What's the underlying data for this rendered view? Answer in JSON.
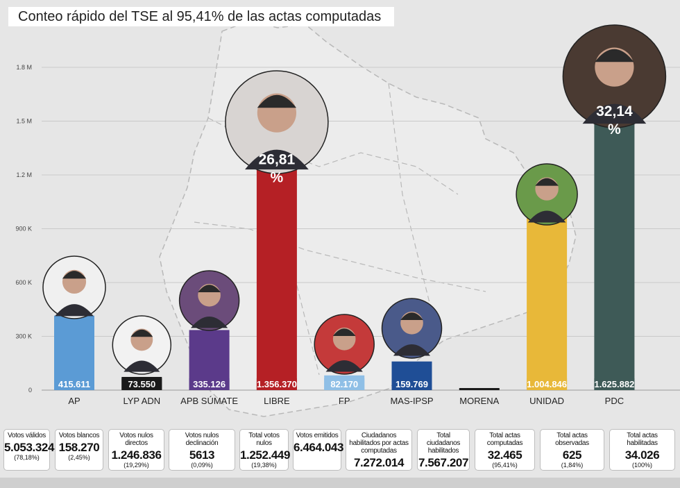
{
  "title": "Conteo rápido del TSE al 95,41% de las actas computadas",
  "chart_data": {
    "type": "bar",
    "title": "Conteo rápido del TSE al 95,41% de las actas computadas",
    "categories": [
      "AP",
      "LYP ADN",
      "APB SÚMATE",
      "LIBRE",
      "FP",
      "MAS-IPSP",
      "MORENA",
      "UNIDAD",
      "PDC"
    ],
    "values": [
      415611,
      73550,
      335126,
      1356370,
      82170,
      159769,
      0,
      1004846,
      1625882
    ],
    "value_labels": [
      "415.611",
      "73.550",
      "335.126",
      "1.356.370",
      "82.170",
      "159.769",
      "",
      "1.004.846",
      "1.625.882"
    ],
    "percent_labels": {
      "LIBRE": "26,81",
      "PDC": "32,14"
    },
    "percent_sign": "%",
    "colors": [
      "#5b9bd5",
      "#1a1a1a",
      "#5b3a8a",
      "#b52025",
      "#8fbfe6",
      "#1f4e96",
      "#1a1a1a",
      "#e8b839",
      "#3e5a57"
    ],
    "yticks": [
      {
        "value": 0,
        "label": "0"
      },
      {
        "value": 300000,
        "label": "300 K"
      },
      {
        "value": 600000,
        "label": "600 K"
      },
      {
        "value": 900000,
        "label": "900 K"
      },
      {
        "value": 1200000,
        "label": "1.2 M"
      },
      {
        "value": 1500000,
        "label": "1.5 M"
      },
      {
        "value": 1800000,
        "label": "1.8 M"
      }
    ],
    "ylim": [
      0,
      1800000
    ],
    "grid": true,
    "legend": "none",
    "xlabel": "",
    "ylabel": ""
  },
  "stats": [
    {
      "label": "Votos válidos",
      "value": "5.053.324",
      "pct": "(78,18%)"
    },
    {
      "label": "Votos blancos",
      "value": "158.270",
      "pct": "(2,45%)"
    },
    {
      "label": "Votos nulos directos",
      "value": "1.246.836",
      "pct": "(19,29%)"
    },
    {
      "label": "Votos nulos declinación",
      "value": "5613",
      "pct": "(0,09%)"
    },
    {
      "label": "Total votos nulos",
      "value": "1.252.449",
      "pct": "(19,38%)"
    },
    {
      "label": "Votos emitidos",
      "value": "6.464.043",
      "pct": ""
    },
    {
      "label": "Ciudadanos habilitados por actas computadas",
      "value": "7.272.014",
      "pct": ""
    },
    {
      "label": "Total ciudadanos habilitados",
      "value": "7.567.207",
      "pct": ""
    },
    {
      "label": "Total actas computadas",
      "value": "32.465",
      "pct": "(95,41%)"
    },
    {
      "label": "Total actas observadas",
      "value": "625",
      "pct": "(1,84%)"
    },
    {
      "label": "Total actas habilitadas",
      "value": "34.026",
      "pct": "(100%)"
    }
  ]
}
